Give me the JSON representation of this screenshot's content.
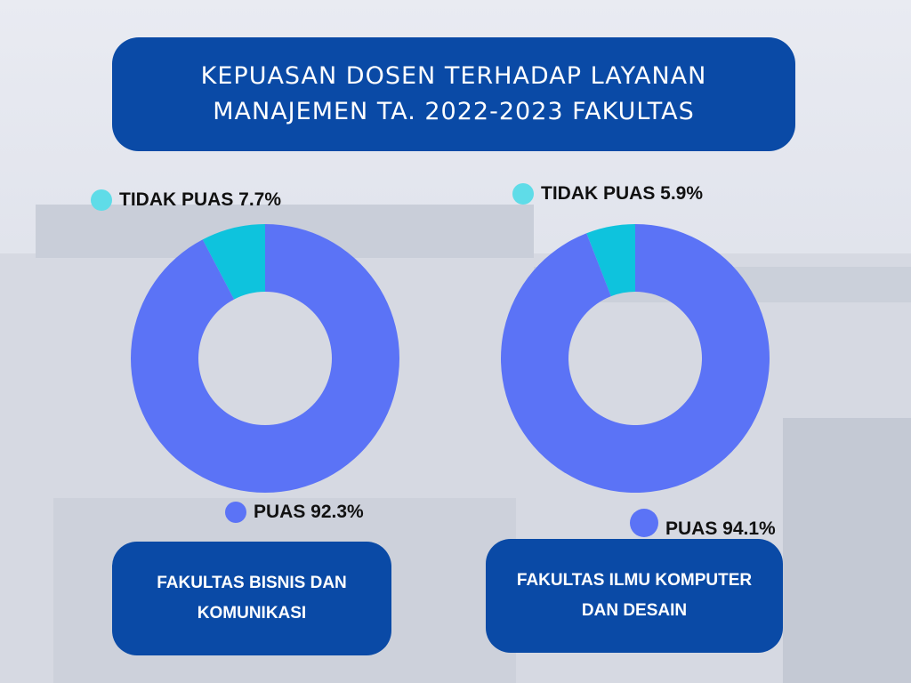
{
  "title": "KEPUASAN DOSEN TERHADAP LAYANAN\nMANAJEMEN TA. 2022-2023 FAKULTAS",
  "colors": {
    "satisfied": "#5b73f6",
    "not_satisfied": "#0ec3dd",
    "box": "#0a4aa6",
    "dot_satisfied": "#5b73f6",
    "dot_not_satisfied": "#5fdce8"
  },
  "chart_data": [
    {
      "type": "pie",
      "labels": [
        "TIDAK PUAS",
        "PUAS"
      ],
      "values": [
        7.7,
        92.3
      ],
      "legend": {
        "not_satisfied": "TIDAK PUAS 7.7%",
        "satisfied": "PUAS 92.3%"
      },
      "caption": "FAKULTAS BISNIS DAN\nKOMUNIKASI"
    },
    {
      "type": "pie",
      "labels": [
        "TIDAK PUAS",
        "PUAS"
      ],
      "values": [
        5.9,
        94.1
      ],
      "legend": {
        "not_satisfied": "TIDAK PUAS 5.9%",
        "satisfied": "PUAS 94.1%"
      },
      "caption": "FAKULTAS ILMU KOMPUTER\nDAN DESAIN"
    }
  ]
}
